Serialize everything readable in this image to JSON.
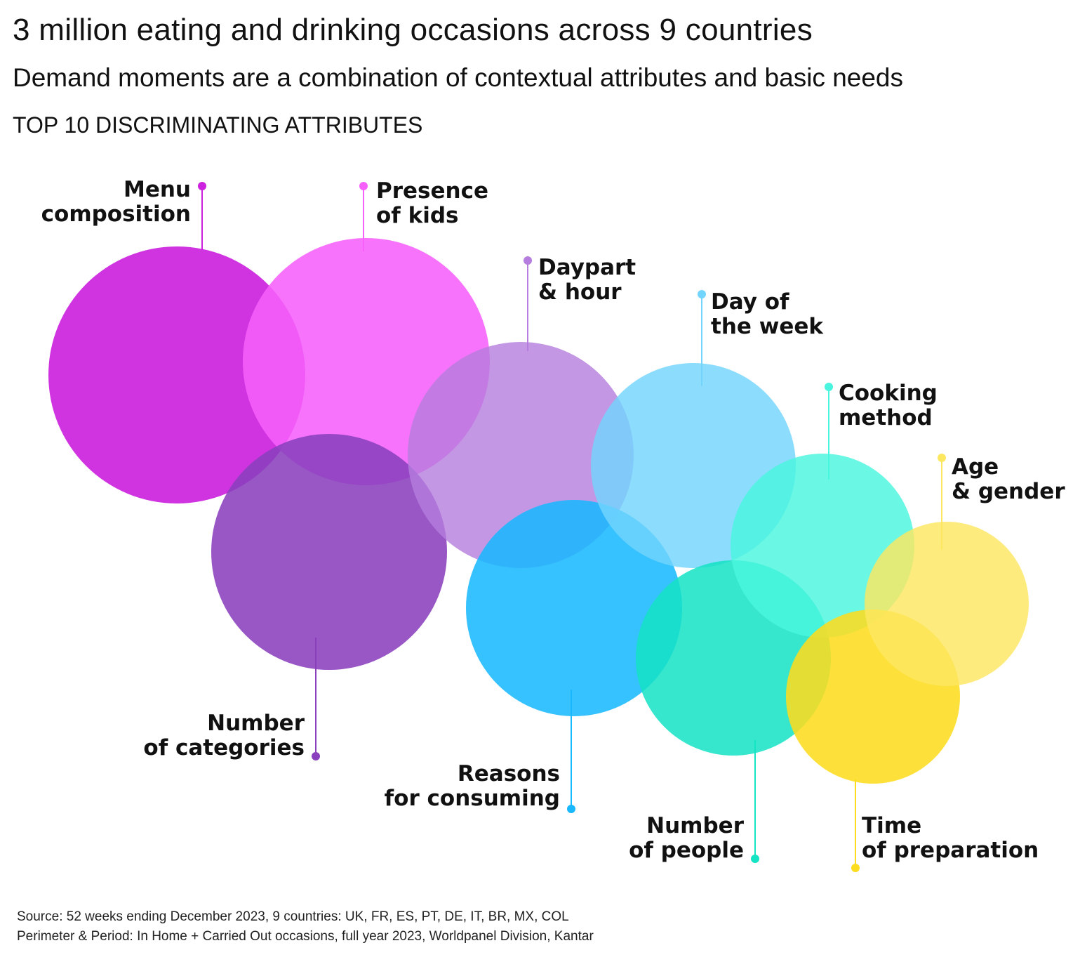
{
  "header": {
    "title": "3 million eating and drinking occasions across 9 countries",
    "subtitle": "Demand moments are a combination of contextual attributes and basic needs",
    "section_label": "TOP 10 DISCRIMINATING ATTRIBUTES"
  },
  "attributes": [
    {
      "id": "menu-composition",
      "line1": "Menu",
      "line2": "composition",
      "color": "#cc22dd"
    },
    {
      "id": "presence-of-kids",
      "line1": "Presence",
      "line2": "of kids",
      "color": "#f660fb"
    },
    {
      "id": "number-of-categories",
      "line1": "Number",
      "line2": "of categories",
      "color": "#8a40bd"
    },
    {
      "id": "daypart-hour",
      "line1": "Daypart",
      "line2": "& hour",
      "color": "#b57ddd"
    },
    {
      "id": "reasons-for-consuming",
      "line1": "Reasons",
      "line2": "for consuming",
      "color": "#1ab8ff"
    },
    {
      "id": "day-of-the-week",
      "line1": "Day of",
      "line2": "the week",
      "color": "#73d4fd"
    },
    {
      "id": "number-of-people",
      "line1": "Number",
      "line2": "of people",
      "color": "#14e3c4"
    },
    {
      "id": "cooking-method",
      "line1": "Cooking",
      "line2": "method",
      "color": "#49f5de"
    },
    {
      "id": "time-of-preparation",
      "line1": "Time",
      "line2": "of preparation",
      "color": "#fddd1f"
    },
    {
      "id": "age-gender",
      "line1": "Age",
      "line2": "& gender",
      "color": "#fde760"
    }
  ],
  "footer": {
    "source": "Source: 52 weeks ending December 2023, 9 countries: UK, FR, ES, PT, DE, IT, BR, MX, COL",
    "perimeter": "Perimeter & Period: In Home + Carried Out occasions, full year 2023, Worldpanel Division, Kantar"
  }
}
